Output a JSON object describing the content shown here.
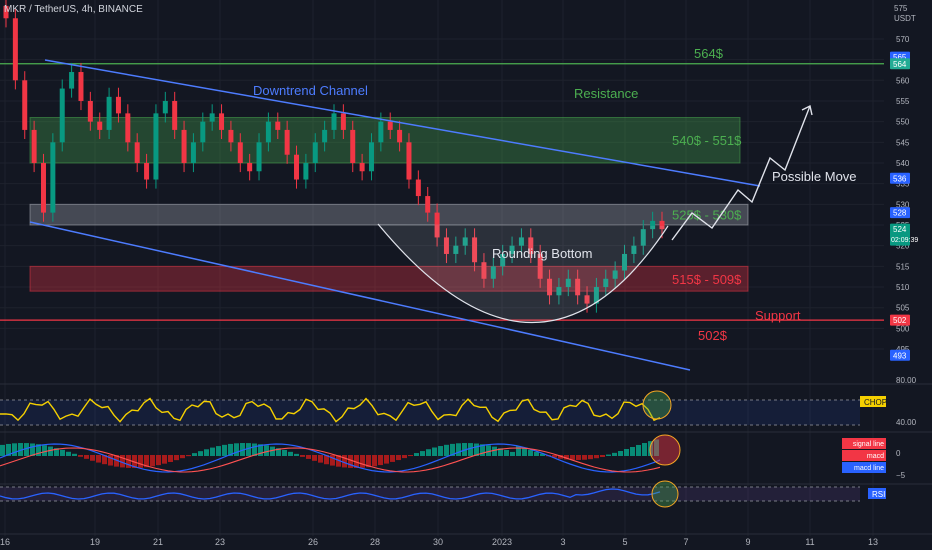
{
  "header": {
    "symbol_line": "MKR / TetherUS, 4h, BINANCE"
  },
  "price_axis": {
    "unit": "USDT",
    "top_label": "575",
    "ticks": [
      570,
      565,
      560,
      555,
      550,
      545,
      540,
      535,
      530,
      525,
      520,
      515,
      510,
      505,
      500,
      495
    ],
    "badges": [
      {
        "value": "565",
        "price": 565.6,
        "color": "#2962ff"
      },
      {
        "value": "564",
        "price": 564,
        "color": "#22ab94"
      },
      {
        "value": "536",
        "price": 536.3,
        "color": "#2962ff"
      },
      {
        "value": "528",
        "price": 528,
        "color": "#2962ff"
      },
      {
        "value": "524",
        "price": 524,
        "color": "#089981",
        "extra": "02:09:39"
      },
      {
        "value": "502",
        "price": 502,
        "color": "#f23645"
      },
      {
        "value": "493",
        "price": 493.5,
        "color": "#2962ff"
      }
    ]
  },
  "time_axis": {
    "labels": [
      "16",
      "19",
      "21",
      "23",
      "26",
      "28",
      "30",
      "2023",
      "3",
      "5",
      "7",
      "9",
      "11",
      "13"
    ]
  },
  "chart_data": {
    "type": "line",
    "title": "MKR / TetherUS, 4h, BINANCE",
    "y_unit": "USDT",
    "ylim": [
      488,
      577
    ],
    "x_labels": [
      "16",
      "19",
      "21",
      "23",
      "26",
      "28",
      "30",
      "2023",
      "3",
      "5",
      "7",
      "9",
      "11",
      "13"
    ],
    "price_close_approx": [
      575,
      560,
      548,
      540,
      528,
      545,
      558,
      562,
      555,
      550,
      548,
      556,
      552,
      545,
      540,
      536,
      552,
      555,
      548,
      540,
      545,
      550,
      552,
      548,
      545,
      540,
      538,
      545,
      550,
      548,
      542,
      536,
      540,
      545,
      548,
      552,
      548,
      540,
      538,
      545,
      550,
      548,
      545,
      536,
      532,
      528,
      522,
      518,
      520,
      522,
      516,
      512,
      515,
      518,
      520,
      522,
      518,
      512,
      508,
      510,
      512,
      508,
      506,
      510,
      512,
      514,
      518,
      520,
      524,
      526,
      524
    ],
    "levels": [
      {
        "label": "564$",
        "price": 564,
        "color": "#4caf50"
      },
      {
        "label": "502$",
        "price": 502,
        "color": "#f23645"
      }
    ],
    "zones": [
      {
        "label": "540$ - 551$",
        "low": 540,
        "high": 551,
        "color": "#4caf50"
      },
      {
        "label": "525$ - 530$",
        "low": 525,
        "high": 530,
        "color": "#b2b5be"
      },
      {
        "label": "515$ - 509$",
        "low": 509,
        "high": 515,
        "color": "#f23645"
      }
    ],
    "annotations": [
      {
        "text": "Downtrend Channel",
        "color": "#4d7cff"
      },
      {
        "text": "Resistance",
        "color": "#4caf50"
      },
      {
        "text": "Rounding Bottom",
        "color": "#e0e3eb"
      },
      {
        "text": "Possible Move",
        "color": "#e0e3eb"
      },
      {
        "text": "Support",
        "color": "#f23645"
      }
    ],
    "indicators": [
      {
        "name": "CHOP",
        "levels": [
          80.0,
          40.0
        ]
      },
      {
        "name": "MACD",
        "legend": [
          "signal line",
          "macd",
          "macd line"
        ],
        "levels": [
          "0",
          "−5"
        ]
      },
      {
        "name": "RSI"
      }
    ]
  }
}
